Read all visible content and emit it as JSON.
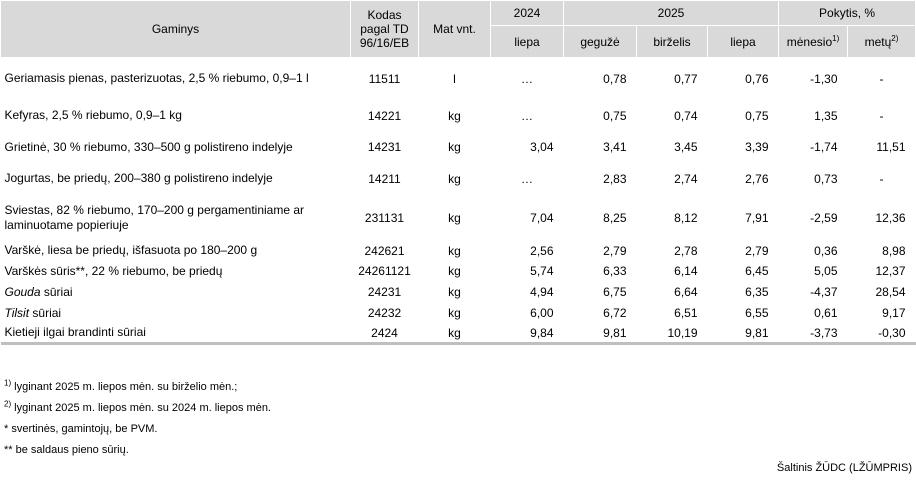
{
  "header": {
    "product": "Gaminys",
    "code": "Kodas pagal TD 96/16/EB",
    "unit": "Mat vnt.",
    "year1": "2024",
    "year2": "2025",
    "change": "Pokytis, %",
    "m_2024_jul": "liepa",
    "m_may": "gegužė",
    "m_jun": "birželis",
    "m_jul": "liepa",
    "month_change": "mėnesio",
    "month_sup": "1)",
    "year_change": "metų",
    "year_sup": "2)"
  },
  "rows": [
    {
      "name_plain": "Geriamasis pienas, pasterizuotas, 2,5 % riebumo, 0,9–1 l",
      "code": "11511",
      "unit": "l",
      "v2024": "…",
      "may": "0,78",
      "jun": "0,77",
      "jul": "0,76",
      "mchg": "-1,30",
      "ychg": "-"
    },
    {
      "name_plain": "Kefyras, 2,5 % riebumo, 0,9–1 kg",
      "code": "14221",
      "unit": "kg",
      "v2024": "…",
      "may": "0,75",
      "jun": "0,74",
      "jul": "0,75",
      "mchg": "1,35",
      "ychg": "-"
    },
    {
      "name_plain": "Grietinė, 30 % riebumo, 330–500 g polistireno indelyje",
      "code": "14231",
      "unit": "kg",
      "v2024": "3,04",
      "may": "3,41",
      "jun": "3,45",
      "jul": "3,39",
      "mchg": "-1,74",
      "ychg": "11,51"
    },
    {
      "name_plain": "Jogurtas, be priedų, 200–380 g polistireno indelyje",
      "code": "14211",
      "unit": "kg",
      "v2024": "…",
      "may": "2,83",
      "jun": "2,74",
      "jul": "2,76",
      "mchg": "0,73",
      "ychg": "-"
    },
    {
      "name_plain": "Sviestas, 82 % riebumo, 170–200 g pergamentiniame ar laminuotame popieriuje",
      "code": "231131",
      "unit": "kg",
      "v2024": "7,04",
      "may": "8,25",
      "jun": "8,12",
      "jul": "7,91",
      "mchg": "-2,59",
      "ychg": "12,36"
    },
    {
      "name_plain": "Varškė, liesa be priedų, išfasuota po 180–200 g",
      "code": "242621",
      "unit": "kg",
      "v2024": "2,56",
      "may": "2,79",
      "jun": "2,78",
      "jul": "2,79",
      "mchg": "0,36",
      "ychg": "8,98"
    },
    {
      "name_plain": "Varškės sūris**, 22 % riebumo, be priedų",
      "code": "24261121",
      "unit": "kg",
      "v2024": "5,74",
      "may": "6,33",
      "jun": "6,14",
      "jul": "6,45",
      "mchg": "5,05",
      "ychg": "12,37"
    },
    {
      "name_italic": "Gouda",
      "name_rest": " sūriai",
      "code": "24231",
      "unit": "kg",
      "v2024": "4,94",
      "may": "6,75",
      "jun": "6,64",
      "jul": "6,35",
      "mchg": "-4,37",
      "ychg": "28,54"
    },
    {
      "name_italic": "Tilsit",
      "name_rest": " sūriai",
      "code": "24232",
      "unit": "kg",
      "v2024": "6,00",
      "may": "6,72",
      "jun": "6,51",
      "jul": "6,55",
      "mchg": "0,61",
      "ychg": "9,17"
    },
    {
      "name_plain": "Kietieji ilgai brandinti sūriai",
      "code": "2424",
      "unit": "kg",
      "v2024": "9,84",
      "may": "9,81",
      "jun": "10,19",
      "jul": "9,81",
      "mchg": "-3,73",
      "ychg": "-0,30"
    }
  ],
  "notes": {
    "n1_sup": "1)",
    "n1": " lyginant 2025 m. liepos mėn. su birželio mėn.;",
    "n2_sup": "2)",
    "n2": " lyginant 2025 m. liepos mėn. su 2024 m. liepos mėn.",
    "n3": "* svertinės, gamintojų, be PVM.",
    "n4": "** be saldaus pieno sūrių."
  },
  "source": "Šaltinis ŽŪDC (LŽŪMPRIS)"
}
